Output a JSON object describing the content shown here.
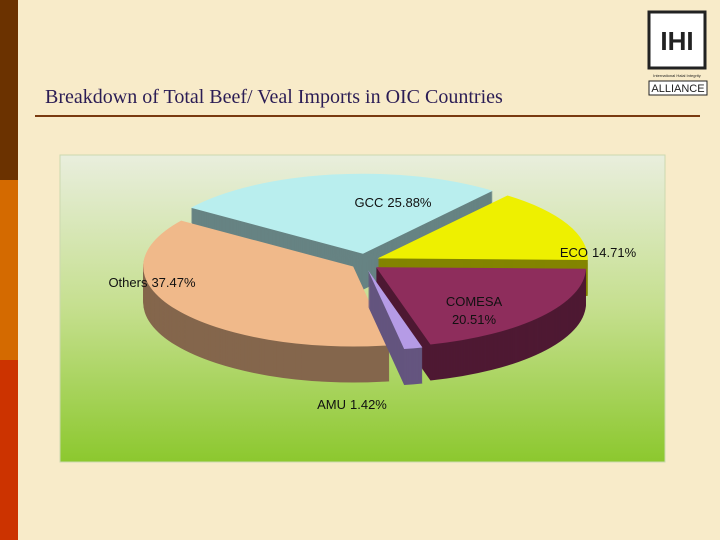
{
  "title": "Breakdown of Total Beef/ Veal Imports in OIC Countries",
  "logo": {
    "mark": "IHI",
    "tagline": "International Halal Integrity",
    "name": "ALLIANCE"
  },
  "chart_data": {
    "type": "pie",
    "categories": [
      "GCC",
      "ECO",
      "COMESA",
      "AMU",
      "Others"
    ],
    "values": [
      25.88,
      14.71,
      20.51,
      1.42,
      37.47
    ],
    "value_labels": [
      "25.88%",
      "14.71%",
      "20.51%",
      "1.42%",
      "37.47%"
    ],
    "colors": [
      "#b9eeee",
      "#eef000",
      "#8e2d5c",
      "#b59be6",
      "#f0b98a"
    ]
  }
}
